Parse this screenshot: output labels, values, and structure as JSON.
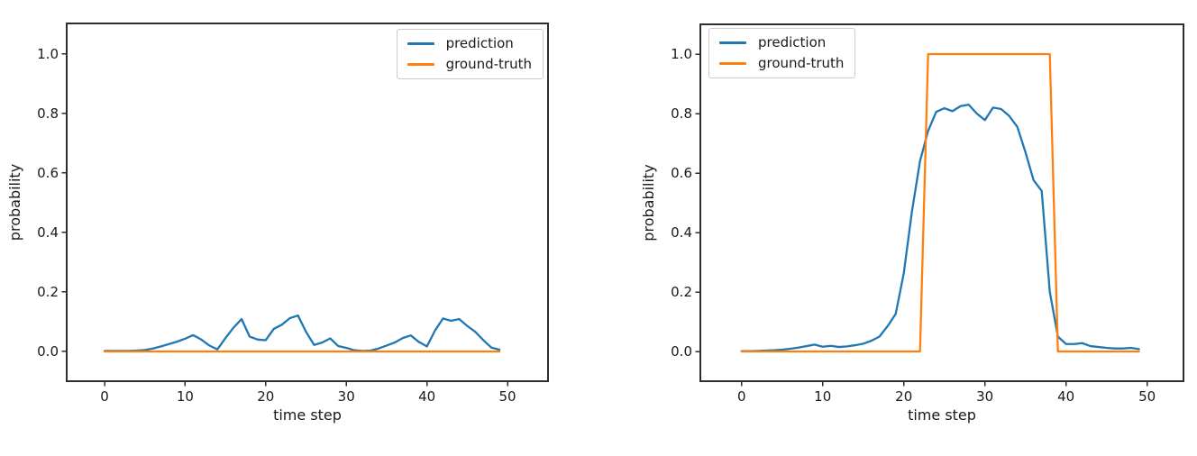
{
  "figure": {
    "background": "#ffffff",
    "axis_color": "#2e2e2e",
    "text_color": "#1a1a1a"
  },
  "chart_data": [
    {
      "type": "line",
      "title": "",
      "xlabel": "time step",
      "ylabel": "probability",
      "grid": false,
      "xlim": [
        -4.7,
        55.03
      ],
      "ylim": [
        -0.1,
        1.103
      ],
      "xticks": {
        "values": [
          0,
          10,
          20,
          30,
          40,
          50
        ],
        "labels": [
          "0",
          "10",
          "20",
          "30",
          "40",
          "50"
        ]
      },
      "yticks": {
        "values": [
          0.0,
          0.2,
          0.4,
          0.6,
          0.8,
          1.0
        ],
        "labels": [
          "0.0",
          "0.2",
          "0.4",
          "0.6",
          "0.8",
          "1.0"
        ]
      },
      "legend": {
        "position": "top-right"
      },
      "x": [
        0,
        1,
        2,
        3,
        4,
        5,
        6,
        7,
        8,
        9,
        10,
        11,
        12,
        13,
        14,
        15,
        16,
        17,
        18,
        19,
        20,
        21,
        22,
        23,
        24,
        25,
        26,
        27,
        28,
        29,
        30,
        31,
        32,
        33,
        34,
        35,
        36,
        37,
        38,
        39,
        40,
        41,
        42,
        43,
        44,
        45,
        46,
        47,
        48,
        49
      ],
      "series": [
        {
          "name": "prediction",
          "color": "#1f77b4",
          "values": [
            0.002,
            0.002,
            0.002,
            0.002,
            0.003,
            0.005,
            0.01,
            0.017,
            0.025,
            0.033,
            0.043,
            0.055,
            0.04,
            0.02,
            0.007,
            0.045,
            0.08,
            0.109,
            0.05,
            0.04,
            0.038,
            0.076,
            0.09,
            0.112,
            0.121,
            0.066,
            0.022,
            0.03,
            0.044,
            0.018,
            0.012,
            0.004,
            0.002,
            0.003,
            0.01,
            0.02,
            0.03,
            0.045,
            0.054,
            0.032,
            0.017,
            0.07,
            0.111,
            0.103,
            0.109,
            0.086,
            0.066,
            0.038,
            0.013,
            0.006
          ]
        },
        {
          "name": "ground-truth",
          "color": "#ff7f0e",
          "values": [
            0,
            0,
            0,
            0,
            0,
            0,
            0,
            0,
            0,
            0,
            0,
            0,
            0,
            0,
            0,
            0,
            0,
            0,
            0,
            0,
            0,
            0,
            0,
            0,
            0,
            0,
            0,
            0,
            0,
            0,
            0,
            0,
            0,
            0,
            0,
            0,
            0,
            0,
            0,
            0,
            0,
            0,
            0,
            0,
            0,
            0,
            0,
            0,
            0,
            0
          ]
        }
      ]
    },
    {
      "type": "line",
      "title": "",
      "xlabel": "time step",
      "ylabel": "probability",
      "grid": false,
      "xlim": [
        -5.08,
        54.48
      ],
      "ylim": [
        -0.1,
        1.1
      ],
      "xticks": {
        "values": [
          0,
          10,
          20,
          30,
          40,
          50
        ],
        "labels": [
          "0",
          "10",
          "20",
          "30",
          "40",
          "50"
        ]
      },
      "yticks": {
        "values": [
          0.0,
          0.2,
          0.4,
          0.6,
          0.8,
          1.0
        ],
        "labels": [
          "0.0",
          "0.2",
          "0.4",
          "0.6",
          "0.8",
          "1.0"
        ]
      },
      "legend": {
        "position": "top-left"
      },
      "x": [
        0,
        1,
        2,
        3,
        4,
        5,
        6,
        7,
        8,
        9,
        10,
        11,
        12,
        13,
        14,
        15,
        16,
        17,
        18,
        19,
        20,
        21,
        22,
        23,
        24,
        25,
        26,
        27,
        28,
        29,
        30,
        31,
        32,
        33,
        34,
        35,
        36,
        37,
        38,
        39,
        40,
        41,
        42,
        43,
        44,
        45,
        46,
        47,
        48,
        49
      ],
      "series": [
        {
          "name": "prediction",
          "color": "#1f77b4",
          "values": [
            0.001,
            0.001,
            0.002,
            0.003,
            0.004,
            0.006,
            0.009,
            0.013,
            0.018,
            0.023,
            0.016,
            0.019,
            0.015,
            0.017,
            0.021,
            0.026,
            0.036,
            0.05,
            0.085,
            0.126,
            0.263,
            0.47,
            0.64,
            0.742,
            0.806,
            0.818,
            0.808,
            0.825,
            0.83,
            0.8,
            0.778,
            0.82,
            0.815,
            0.792,
            0.755,
            0.67,
            0.576,
            0.54,
            0.2,
            0.05,
            0.025,
            0.025,
            0.028,
            0.018,
            0.015,
            0.012,
            0.01,
            0.01,
            0.012,
            0.008
          ]
        },
        {
          "name": "ground-truth",
          "color": "#ff7f0e",
          "values": [
            0,
            0,
            0,
            0,
            0,
            0,
            0,
            0,
            0,
            0,
            0,
            0,
            0,
            0,
            0,
            0,
            0,
            0,
            0,
            0,
            0,
            0,
            0,
            1,
            1,
            1,
            1,
            1,
            1,
            1,
            1,
            1,
            1,
            1,
            1,
            1,
            1,
            1,
            1,
            0,
            0,
            0,
            0,
            0,
            0,
            0,
            0,
            0,
            0,
            0
          ]
        }
      ]
    }
  ]
}
